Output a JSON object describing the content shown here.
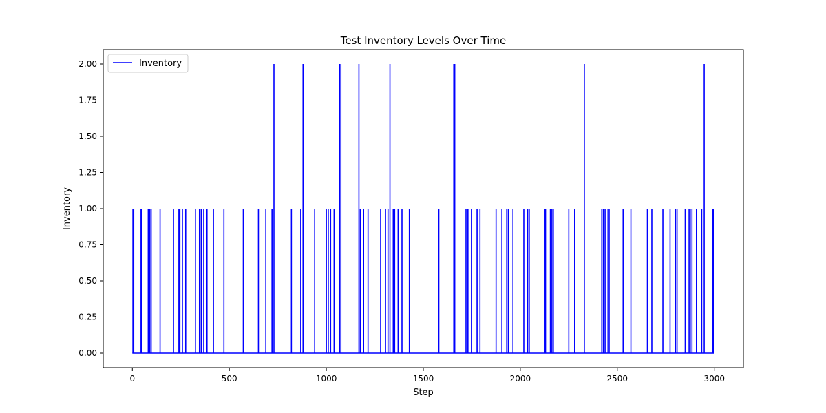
{
  "chart_data": {
    "type": "line",
    "title": "Test Inventory Levels Over Time",
    "xlabel": "Step",
    "ylabel": "Inventory",
    "xlim": [
      -150,
      3150
    ],
    "ylim": [
      -0.1,
      2.1
    ],
    "xticks": [
      0,
      500,
      1000,
      1500,
      2000,
      2500,
      3000
    ],
    "xtick_labels": [
      "0",
      "500",
      "1000",
      "1500",
      "2000",
      "2500",
      "3000"
    ],
    "yticks": [
      0,
      0.25,
      0.5,
      0.75,
      1.0,
      1.25,
      1.5,
      1.75,
      2.0
    ],
    "ytick_labels": [
      "0.00",
      "0.25",
      "0.50",
      "0.75",
      "1.00",
      "1.25",
      "1.50",
      "1.75",
      "2.00"
    ],
    "grid": false,
    "legend_position": "top-left",
    "x_range": [
      0,
      2999
    ],
    "baseline": 0,
    "series": [
      {
        "name": "Inventory",
        "color": "#0000ff",
        "spikes": [
          {
            "x": 3,
            "y": 1
          },
          {
            "x": 7,
            "y": 1
          },
          {
            "x": 42,
            "y": 1
          },
          {
            "x": 48,
            "y": 1
          },
          {
            "x": 82,
            "y": 1
          },
          {
            "x": 90,
            "y": 1
          },
          {
            "x": 97,
            "y": 1
          },
          {
            "x": 143,
            "y": 1
          },
          {
            "x": 212,
            "y": 1
          },
          {
            "x": 240,
            "y": 1
          },
          {
            "x": 245,
            "y": 1
          },
          {
            "x": 258,
            "y": 1
          },
          {
            "x": 275,
            "y": 1
          },
          {
            "x": 325,
            "y": 1
          },
          {
            "x": 346,
            "y": 1
          },
          {
            "x": 355,
            "y": 1
          },
          {
            "x": 368,
            "y": 1
          },
          {
            "x": 385,
            "y": 1
          },
          {
            "x": 418,
            "y": 1
          },
          {
            "x": 472,
            "y": 1
          },
          {
            "x": 572,
            "y": 1
          },
          {
            "x": 650,
            "y": 1
          },
          {
            "x": 688,
            "y": 1
          },
          {
            "x": 720,
            "y": 1
          },
          {
            "x": 730,
            "y": 2
          },
          {
            "x": 820,
            "y": 1
          },
          {
            "x": 868,
            "y": 1
          },
          {
            "x": 880,
            "y": 2
          },
          {
            "x": 940,
            "y": 1
          },
          {
            "x": 1000,
            "y": 1
          },
          {
            "x": 1010,
            "y": 1
          },
          {
            "x": 1022,
            "y": 1
          },
          {
            "x": 1040,
            "y": 1
          },
          {
            "x": 1068,
            "y": 2
          },
          {
            "x": 1075,
            "y": 2
          },
          {
            "x": 1168,
            "y": 2
          },
          {
            "x": 1175,
            "y": 1
          },
          {
            "x": 1192,
            "y": 1
          },
          {
            "x": 1215,
            "y": 1
          },
          {
            "x": 1280,
            "y": 1
          },
          {
            "x": 1305,
            "y": 1
          },
          {
            "x": 1318,
            "y": 1
          },
          {
            "x": 1328,
            "y": 2
          },
          {
            "x": 1345,
            "y": 1
          },
          {
            "x": 1352,
            "y": 1
          },
          {
            "x": 1370,
            "y": 1
          },
          {
            "x": 1390,
            "y": 1
          },
          {
            "x": 1428,
            "y": 1
          },
          {
            "x": 1580,
            "y": 1
          },
          {
            "x": 1657,
            "y": 2
          },
          {
            "x": 1662,
            "y": 2
          },
          {
            "x": 1720,
            "y": 1
          },
          {
            "x": 1730,
            "y": 1
          },
          {
            "x": 1748,
            "y": 1
          },
          {
            "x": 1773,
            "y": 1
          },
          {
            "x": 1780,
            "y": 1
          },
          {
            "x": 1792,
            "y": 1
          },
          {
            "x": 1875,
            "y": 1
          },
          {
            "x": 1905,
            "y": 1
          },
          {
            "x": 1930,
            "y": 1
          },
          {
            "x": 1938,
            "y": 1
          },
          {
            "x": 1962,
            "y": 1
          },
          {
            "x": 2018,
            "y": 1
          },
          {
            "x": 2038,
            "y": 1
          },
          {
            "x": 2046,
            "y": 1
          },
          {
            "x": 2125,
            "y": 1
          },
          {
            "x": 2130,
            "y": 1
          },
          {
            "x": 2155,
            "y": 1
          },
          {
            "x": 2163,
            "y": 1
          },
          {
            "x": 2170,
            "y": 1
          },
          {
            "x": 2250,
            "y": 1
          },
          {
            "x": 2280,
            "y": 1
          },
          {
            "x": 2330,
            "y": 2
          },
          {
            "x": 2420,
            "y": 1
          },
          {
            "x": 2428,
            "y": 1
          },
          {
            "x": 2437,
            "y": 1
          },
          {
            "x": 2452,
            "y": 1
          },
          {
            "x": 2458,
            "y": 1
          },
          {
            "x": 2530,
            "y": 1
          },
          {
            "x": 2570,
            "y": 1
          },
          {
            "x": 2655,
            "y": 1
          },
          {
            "x": 2678,
            "y": 1
          },
          {
            "x": 2735,
            "y": 1
          },
          {
            "x": 2772,
            "y": 1
          },
          {
            "x": 2800,
            "y": 1
          },
          {
            "x": 2808,
            "y": 1
          },
          {
            "x": 2850,
            "y": 1
          },
          {
            "x": 2870,
            "y": 1
          },
          {
            "x": 2876,
            "y": 1
          },
          {
            "x": 2885,
            "y": 1
          },
          {
            "x": 2908,
            "y": 1
          },
          {
            "x": 2935,
            "y": 1
          },
          {
            "x": 2948,
            "y": 2
          },
          {
            "x": 2990,
            "y": 1
          },
          {
            "x": 2995,
            "y": 1
          }
        ]
      }
    ]
  }
}
